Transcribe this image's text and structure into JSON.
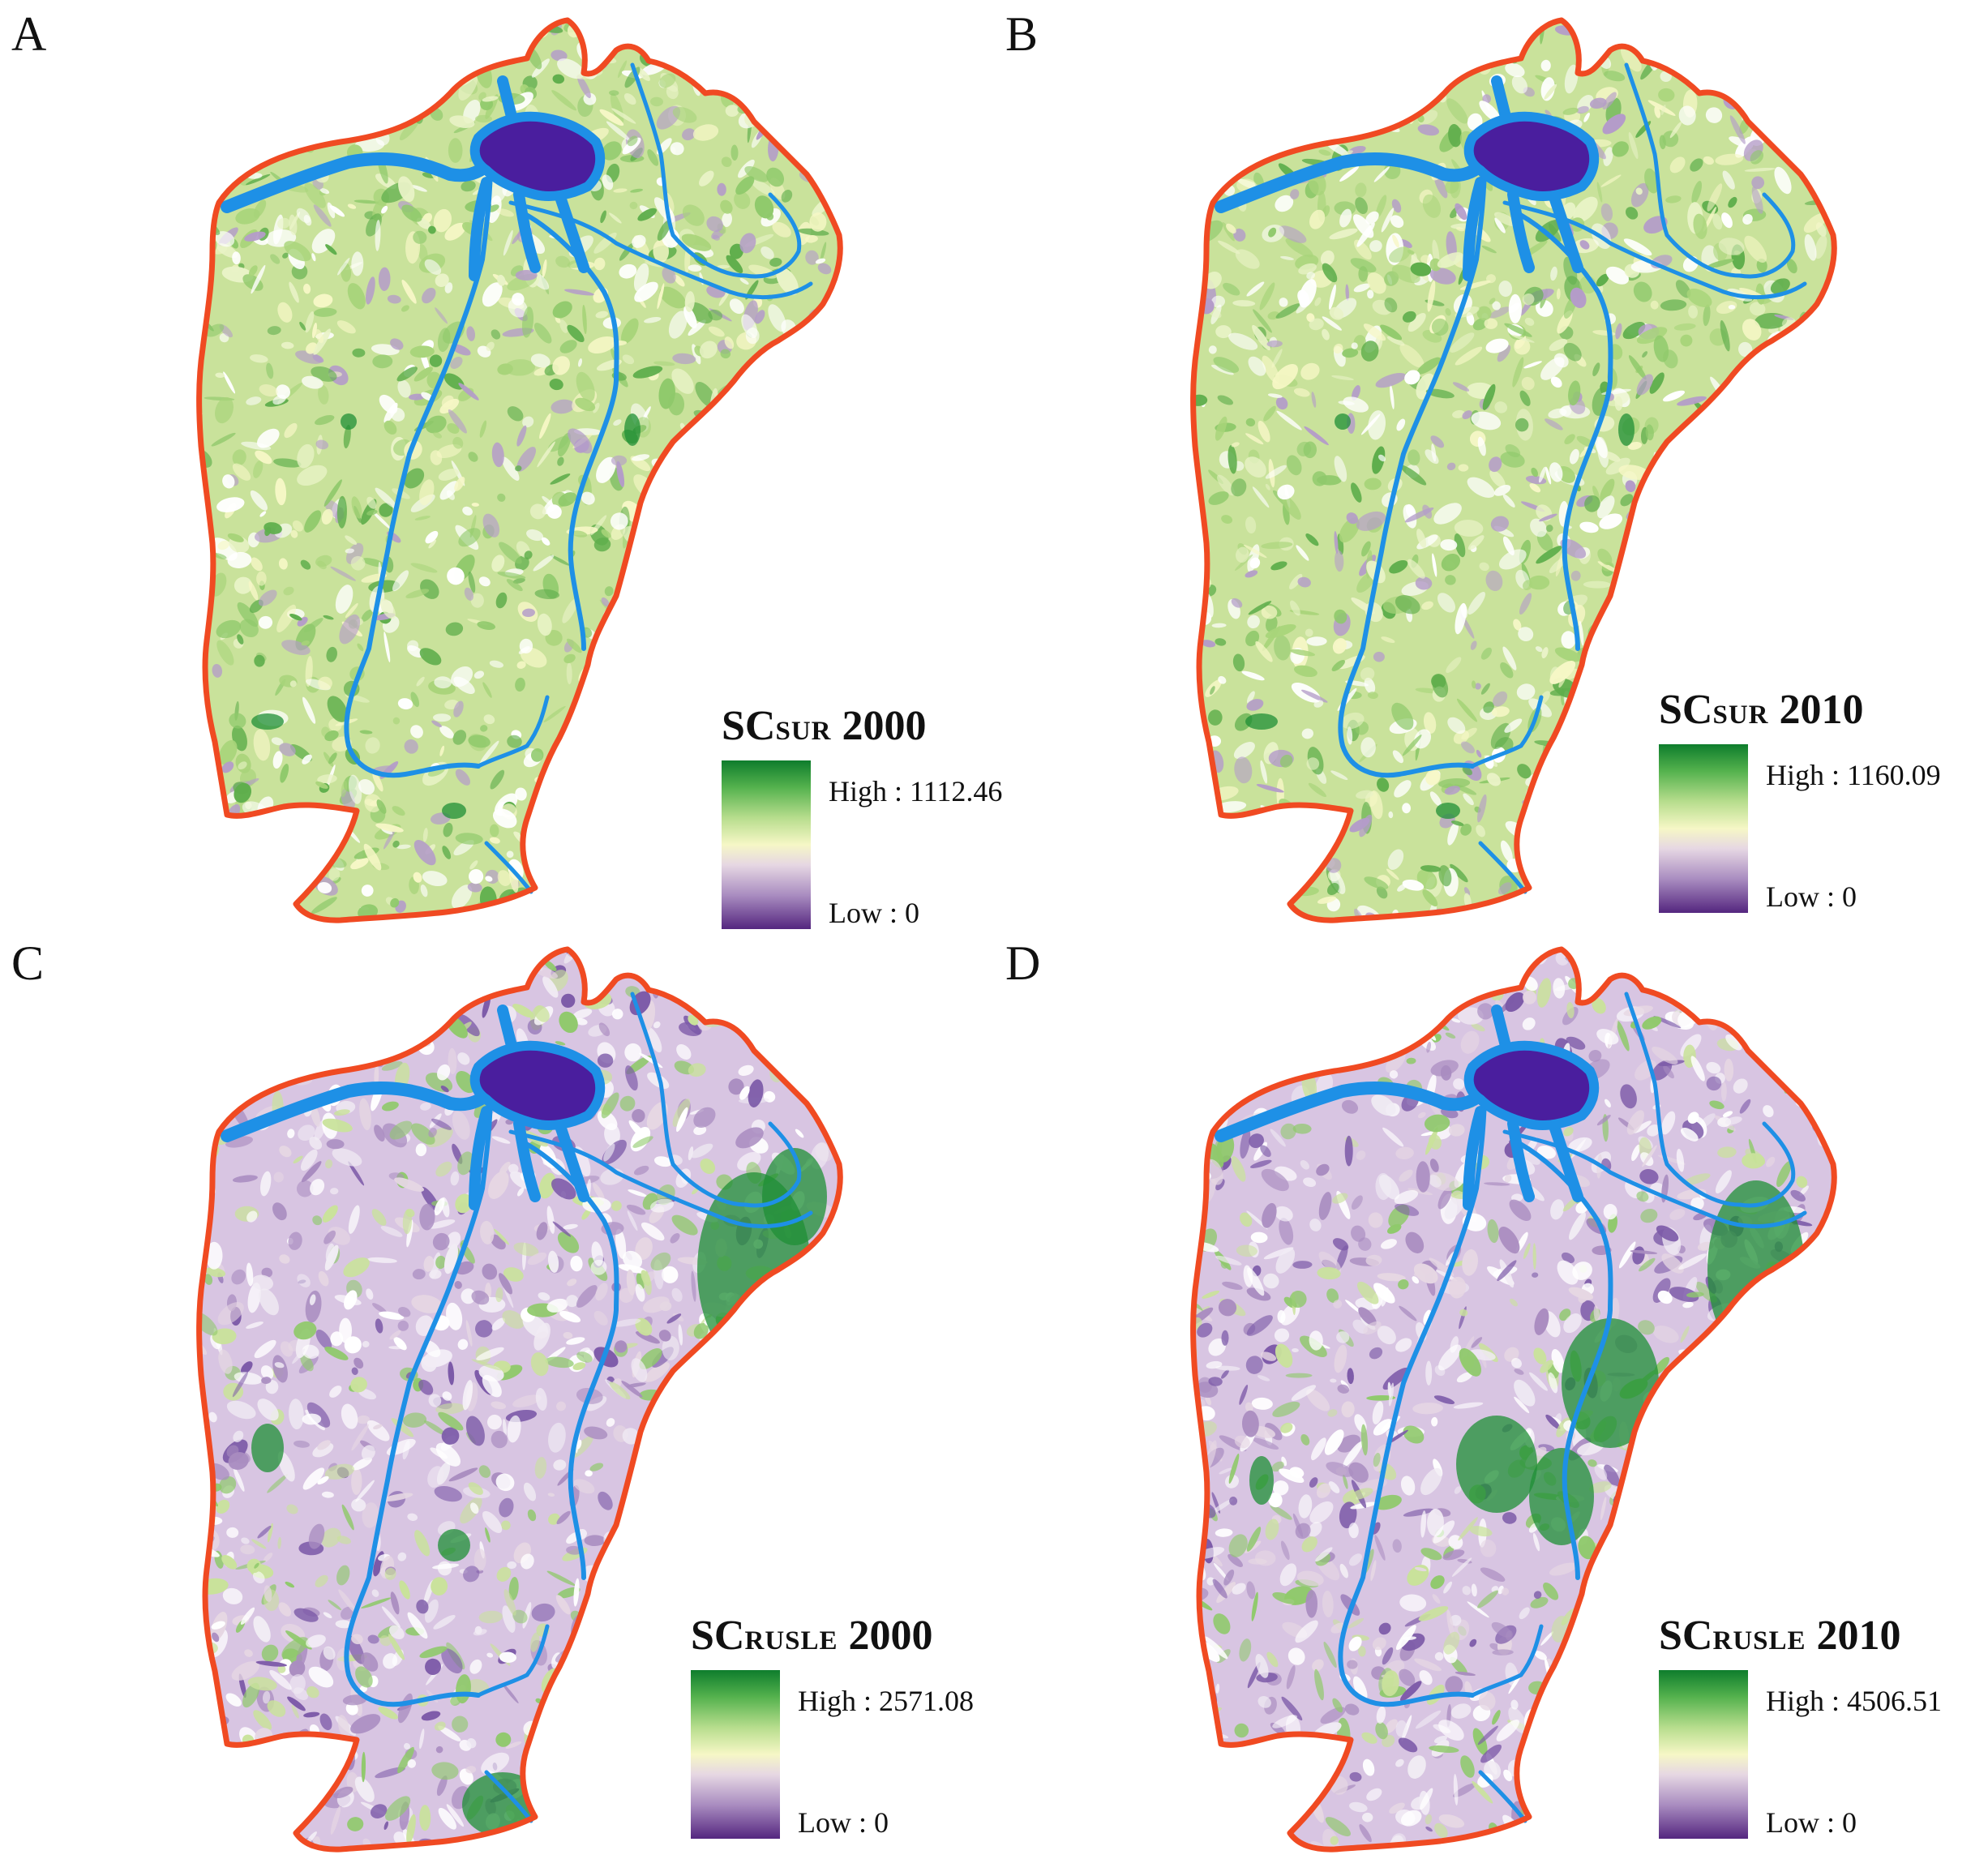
{
  "panels": [
    {
      "letter": "A",
      "title_main": "SC",
      "title_sub": "SUR",
      "year": "2000",
      "high": "High : 1112.46",
      "low": "Low : 0"
    },
    {
      "letter": "B",
      "title_main": "SC",
      "title_sub": "SUR",
      "year": "2010",
      "high": "High : 1160.09",
      "low": "Low : 0"
    },
    {
      "letter": "C",
      "title_main": "SC",
      "title_sub": "RUSLE",
      "year": "2000",
      "high": "High : 2571.08",
      "low": "Low : 0"
    },
    {
      "letter": "D",
      "title_main": "SC",
      "title_sub": "RUSLE",
      "year": "2010",
      "high": "High : 4506.51",
      "low": "Low : 0"
    }
  ],
  "colors": {
    "boundary": "#f04a22",
    "river": "#1e90e6",
    "lake": "#4a1e9e",
    "ramp_high": "#0e7d2c",
    "ramp_mid": "#f6f7c6",
    "ramp_low": "#54267f",
    "land_sur": "#c9e29b",
    "land_rusle": "#d8c5e2"
  }
}
